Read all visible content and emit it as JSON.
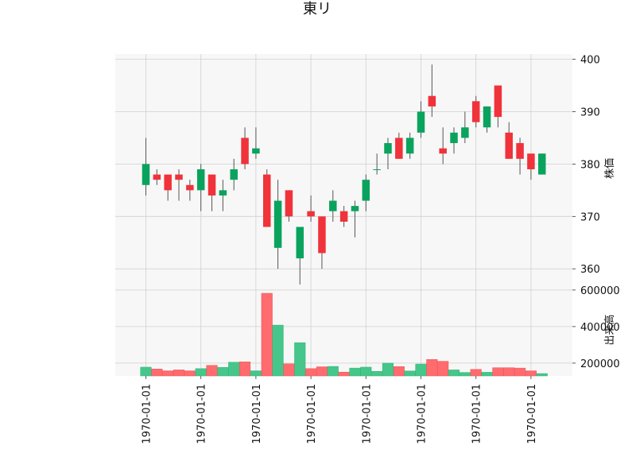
{
  "chart_data": {
    "type": "candlestick",
    "title": "東リ",
    "price_axis_label": "株価",
    "volume_axis_label": "出来高",
    "colors": {
      "up": "#0aa35e",
      "down": "#f0323a",
      "up_volume": "#46c68a",
      "down_volume": "#ff6b6e",
      "panel_bg": "#f7f7f7",
      "grid": "#d0d0d0",
      "wick": "#555555"
    },
    "price_ylim": [
      357,
      401
    ],
    "price_ticks": [
      "360",
      "370",
      "380",
      "390",
      "400"
    ],
    "volume_ylim": [
      130000,
      630000
    ],
    "volume_ticks": [
      "200000",
      "400000",
      "600000"
    ],
    "x_tick_labels": [
      "1970-01-01",
      "1970-01-01",
      "1970-01-01",
      "1970-01-01",
      "1970-01-01",
      "1970-01-01",
      "1970-01-01",
      "1970-01-01"
    ],
    "x_tick_candle_index": [
      0,
      5,
      10,
      15,
      20,
      25,
      30,
      35
    ],
    "candles": [
      {
        "open": 376,
        "high": 385,
        "low": 374,
        "close": 380,
        "volume": 178000
      },
      {
        "open": 378,
        "high": 379,
        "low": 376,
        "close": 377,
        "volume": 168000
      },
      {
        "open": 378,
        "high": 378,
        "low": 373,
        "close": 375,
        "volume": 158000
      },
      {
        "open": 378,
        "high": 379,
        "low": 373,
        "close": 377,
        "volume": 163000
      },
      {
        "open": 376,
        "high": 377,
        "low": 373,
        "close": 375,
        "volume": 158000
      },
      {
        "open": 375,
        "high": 380,
        "low": 371,
        "close": 379,
        "volume": 170000
      },
      {
        "open": 378,
        "high": 378,
        "low": 371,
        "close": 374,
        "volume": 188000
      },
      {
        "open": 374,
        "high": 377,
        "low": 371,
        "close": 375,
        "volume": 177000
      },
      {
        "open": 377,
        "high": 381,
        "low": 375,
        "close": 379,
        "volume": 205000
      },
      {
        "open": 385,
        "high": 387,
        "low": 379,
        "close": 380,
        "volume": 207000
      },
      {
        "open": 382,
        "high": 387,
        "low": 381,
        "close": 383,
        "volume": 158000
      },
      {
        "open": 378,
        "high": 379,
        "low": 368,
        "close": 368,
        "volume": 582000
      },
      {
        "open": 364,
        "high": 377,
        "low": 360,
        "close": 373,
        "volume": 408000
      },
      {
        "open": 375,
        "high": 375,
        "low": 369,
        "close": 370,
        "volume": 196000
      },
      {
        "open": 362,
        "high": 368,
        "low": 357,
        "close": 368,
        "volume": 312000
      },
      {
        "open": 371,
        "high": 374,
        "low": 369,
        "close": 370,
        "volume": 170000
      },
      {
        "open": 370,
        "high": 370,
        "low": 360,
        "close": 363,
        "volume": 180000
      },
      {
        "open": 371,
        "high": 375,
        "low": 369,
        "close": 373,
        "volume": 182000
      },
      {
        "open": 371,
        "high": 372,
        "low": 368,
        "close": 369,
        "volume": 151000
      },
      {
        "open": 371,
        "high": 373,
        "low": 366,
        "close": 372,
        "volume": 173000
      },
      {
        "open": 373,
        "high": 378,
        "low": 371,
        "close": 377,
        "volume": 178000
      },
      {
        "open": 379,
        "high": 382,
        "low": 378,
        "close": 379,
        "volume": 155000
      },
      {
        "open": 382,
        "high": 385,
        "low": 379,
        "close": 384,
        "volume": 200000
      },
      {
        "open": 385,
        "high": 386,
        "low": 381,
        "close": 381,
        "volume": 181000
      },
      {
        "open": 382,
        "high": 386,
        "low": 381,
        "close": 385,
        "volume": 157000
      },
      {
        "open": 386,
        "high": 392,
        "low": 385,
        "close": 390,
        "volume": 195000
      },
      {
        "open": 393,
        "high": 399,
        "low": 389,
        "close": 391,
        "volume": 220000
      },
      {
        "open": 383,
        "high": 387,
        "low": 380,
        "close": 382,
        "volume": 210000
      },
      {
        "open": 384,
        "high": 387,
        "low": 382,
        "close": 386,
        "volume": 163000
      },
      {
        "open": 385,
        "high": 390,
        "low": 384,
        "close": 387,
        "volume": 149000
      },
      {
        "open": 392,
        "high": 393,
        "low": 387,
        "close": 388,
        "volume": 166000
      },
      {
        "open": 387,
        "high": 391,
        "low": 386,
        "close": 391,
        "volume": 150000
      },
      {
        "open": 395,
        "high": 395,
        "low": 387,
        "close": 389,
        "volume": 175000
      },
      {
        "open": 386,
        "high": 388,
        "low": 381,
        "close": 381,
        "volume": 175000
      },
      {
        "open": 384,
        "high": 385,
        "low": 378,
        "close": 381,
        "volume": 173000
      },
      {
        "open": 382,
        "high": 382,
        "low": 377,
        "close": 379,
        "volume": 158000
      },
      {
        "open": 378,
        "high": 382,
        "low": 378,
        "close": 382,
        "volume": 143000
      }
    ]
  }
}
